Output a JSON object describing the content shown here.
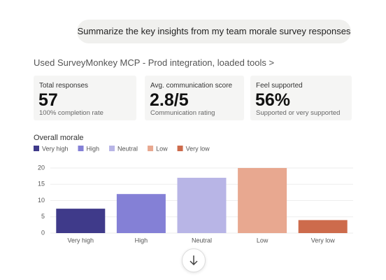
{
  "message": "Summarize the key insights from my team morale survey responses",
  "tool_call": "Used SurveyMonkey MCP - Prod integration, loaded tools >",
  "cards": [
    {
      "label": "Total responses",
      "value": "57",
      "sub": "100% completion rate"
    },
    {
      "label": "Avg. communication score",
      "value": "2.8/5",
      "sub": "Communication rating"
    },
    {
      "label": "Feel supported",
      "value": "56%",
      "sub": "Supported or very supported"
    }
  ],
  "chart_data": {
    "type": "bar",
    "title": "Overall morale",
    "categories": [
      "Very high",
      "High",
      "Neutral",
      "Low",
      "Very low"
    ],
    "values": [
      7.5,
      12,
      17,
      20,
      4
    ],
    "colors": [
      "#3f3a8a",
      "#8480d6",
      "#b8b5e6",
      "#e8a890",
      "#cd6b4c"
    ],
    "ylim": [
      0,
      20
    ],
    "yticks": [
      0,
      5,
      10,
      15,
      20
    ],
    "grid": true
  }
}
